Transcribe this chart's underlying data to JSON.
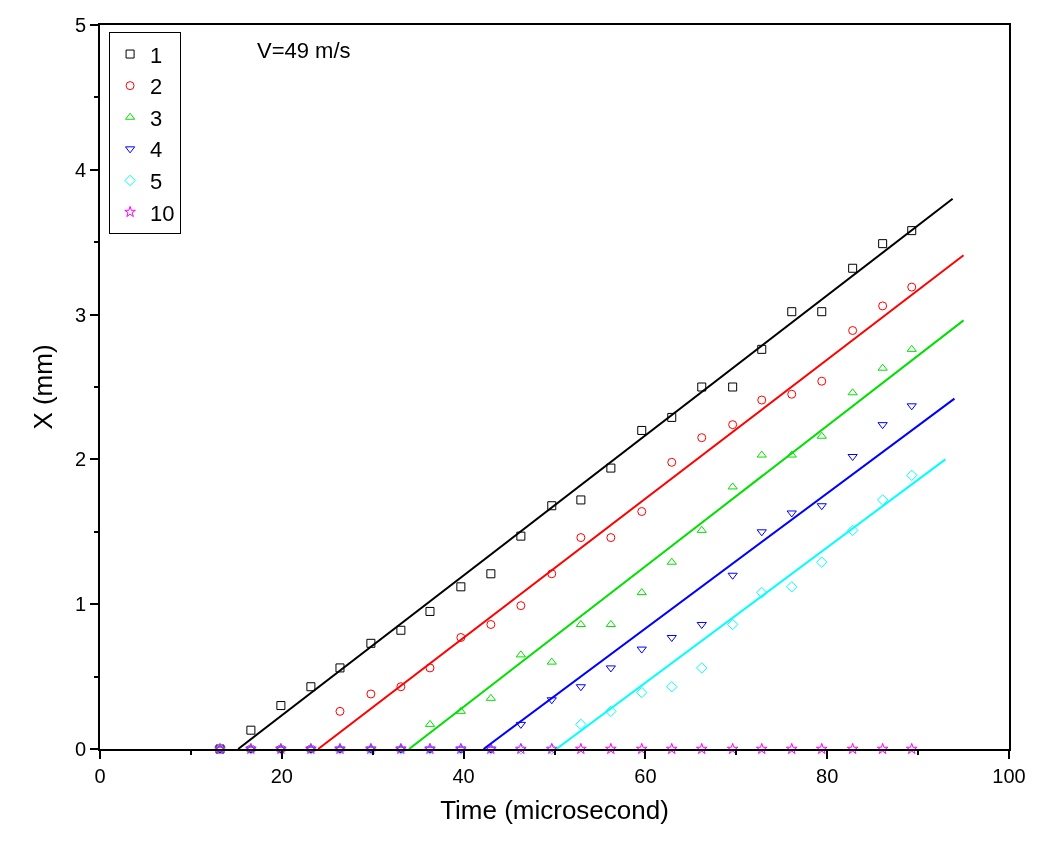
{
  "chart_data": {
    "type": "scatter",
    "xlabel": "Time (microsecond)",
    "ylabel": "X (mm)",
    "annotations": [
      "V=49 m/s"
    ],
    "x": [
      13.2,
      16.6,
      19.9,
      23.2,
      26.4,
      29.8,
      33.1,
      36.3,
      39.7,
      43.0,
      46.3,
      49.7,
      52.9,
      56.2,
      59.6,
      62.9,
      66.2,
      69.6,
      72.8,
      76.1,
      79.4,
      82.8,
      86.1,
      89.3
    ],
    "xlim": [
      0,
      100
    ],
    "xticks": [
      0,
      20,
      40,
      60,
      80,
      100
    ],
    "ylim": [
      0,
      5
    ],
    "yticks": [
      0,
      1,
      2,
      3,
      4,
      5
    ],
    "legend": "top left",
    "series": [
      {
        "name": "1",
        "color": "#000000",
        "marker": "square",
        "values": [
          0,
          0.13,
          0.3,
          0.43,
          0.56,
          0.73,
          0.82,
          0.95,
          1.12,
          1.21,
          1.47,
          1.68,
          1.72,
          1.94,
          2.2,
          2.29,
          2.5,
          2.5,
          2.76,
          3.02,
          3.02,
          3.32,
          3.49,
          3.58
        ]
      },
      {
        "name": "2",
        "color": "#ff0000",
        "marker": "circle",
        "values": [
          0,
          0,
          0,
          0,
          0.26,
          0.38,
          0.43,
          0.56,
          0.77,
          0.86,
          0.99,
          1.21,
          1.46,
          1.46,
          1.64,
          1.98,
          2.15,
          2.24,
          2.41,
          2.45,
          2.54,
          2.89,
          3.06,
          3.19
        ]
      },
      {
        "name": "3",
        "color": "#00e000",
        "marker": "triangle",
        "values": [
          0,
          0,
          0,
          0,
          0,
          0,
          0,
          0.17,
          0.26,
          0.35,
          0.65,
          0.6,
          0.86,
          0.86,
          1.08,
          1.29,
          1.51,
          1.81,
          2.03,
          2.03,
          2.16,
          2.46,
          2.63,
          2.76
        ]
      },
      {
        "name": "4",
        "color": "#0000ff",
        "marker": "triangle-down",
        "values": [
          0,
          0,
          0,
          0,
          0,
          0,
          0,
          0,
          0,
          0,
          0.17,
          0.34,
          0.43,
          0.56,
          0.69,
          0.77,
          0.86,
          1.2,
          1.5,
          1.63,
          1.68,
          2.02,
          2.24,
          2.37
        ]
      },
      {
        "name": "5",
        "color": "#00ffff",
        "marker": "diamond",
        "values": [
          0,
          0,
          0,
          0,
          0,
          0,
          0,
          0,
          0,
          0,
          0,
          0,
          0.17,
          0.26,
          0.39,
          0.43,
          0.56,
          0.86,
          1.08,
          1.12,
          1.29,
          1.51,
          1.72,
          1.89
        ]
      },
      {
        "name": "10",
        "color": "#ff00ff",
        "marker": "star",
        "values": [
          0,
          0,
          0,
          0,
          0,
          0,
          0,
          0,
          0,
          0,
          0,
          0,
          0,
          0,
          0,
          0,
          0,
          0,
          0,
          0,
          0,
          0,
          0,
          0
        ]
      },
      {
        "type": "line",
        "color": "#000000",
        "x": [
          15.2,
          93.8
        ],
        "values": [
          0,
          3.8
        ]
      },
      {
        "type": "line",
        "color": "#ff0000",
        "x": [
          24.0,
          95.0
        ],
        "values": [
          0,
          3.41
        ]
      },
      {
        "type": "line",
        "color": "#00e000",
        "x": [
          34.0,
          95.0
        ],
        "values": [
          0,
          2.96
        ]
      },
      {
        "type": "line",
        "color": "#0000ff",
        "x": [
          42.2,
          94.0
        ],
        "values": [
          0,
          2.42
        ]
      },
      {
        "type": "line",
        "color": "#00ffff",
        "x": [
          50.2,
          93.0
        ],
        "values": [
          0,
          2.0
        ]
      }
    ]
  }
}
